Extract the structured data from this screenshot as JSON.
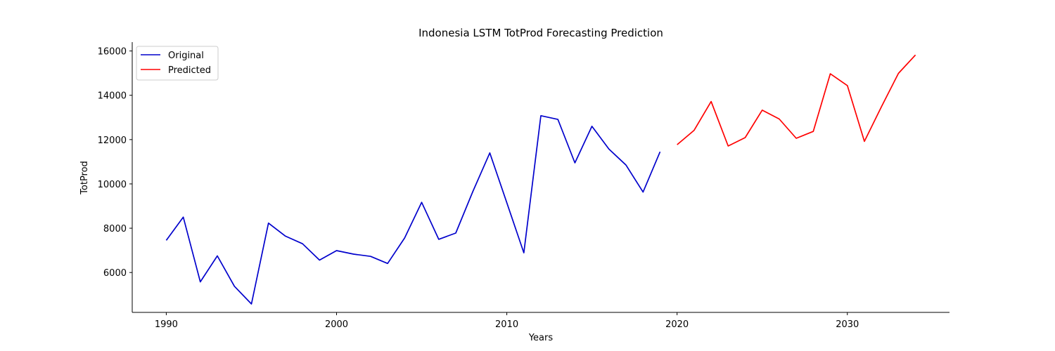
{
  "chart_data": {
    "type": "line",
    "title": "Indonesia LSTM TotProd Forecasting Prediction",
    "xlabel": "Years",
    "ylabel": "TotProd",
    "xlim": [
      1988,
      2036
    ],
    "ylim": [
      4200,
      16400
    ],
    "xticks": [
      1990,
      2000,
      2010,
      2020,
      2030
    ],
    "yticks": [
      6000,
      8000,
      10000,
      12000,
      14000,
      16000
    ],
    "grid": false,
    "legend_position": "top-left",
    "series": [
      {
        "name": "Original",
        "color": "#0000cc",
        "x": [
          1990,
          1991,
          1992,
          1993,
          1994,
          1995,
          1996,
          1997,
          1998,
          1999,
          2000,
          2001,
          2002,
          2003,
          2004,
          2005,
          2006,
          2007,
          2008,
          2009,
          2010,
          2011,
          2012,
          2013,
          2014,
          2015,
          2016,
          2017,
          2018,
          2019
        ],
        "y": [
          7450,
          8500,
          5580,
          6750,
          5380,
          4580,
          8230,
          7640,
          7300,
          6560,
          6990,
          6830,
          6730,
          6410,
          7560,
          9170,
          7500,
          7780,
          9650,
          11400,
          9150,
          6890,
          13080,
          12910,
          10950,
          12600,
          11570,
          10850,
          9630,
          11450
        ]
      },
      {
        "name": "Predicted",
        "color": "#ff0000",
        "x": [
          2020,
          2021,
          2022,
          2023,
          2024,
          2025,
          2026,
          2027,
          2028,
          2029,
          2030,
          2031,
          2032,
          2033,
          2034
        ],
        "y": [
          11770,
          12420,
          13720,
          11710,
          12090,
          13330,
          12930,
          12060,
          12370,
          14970,
          14440,
          11920,
          13480,
          14990,
          15820
        ]
      }
    ]
  }
}
